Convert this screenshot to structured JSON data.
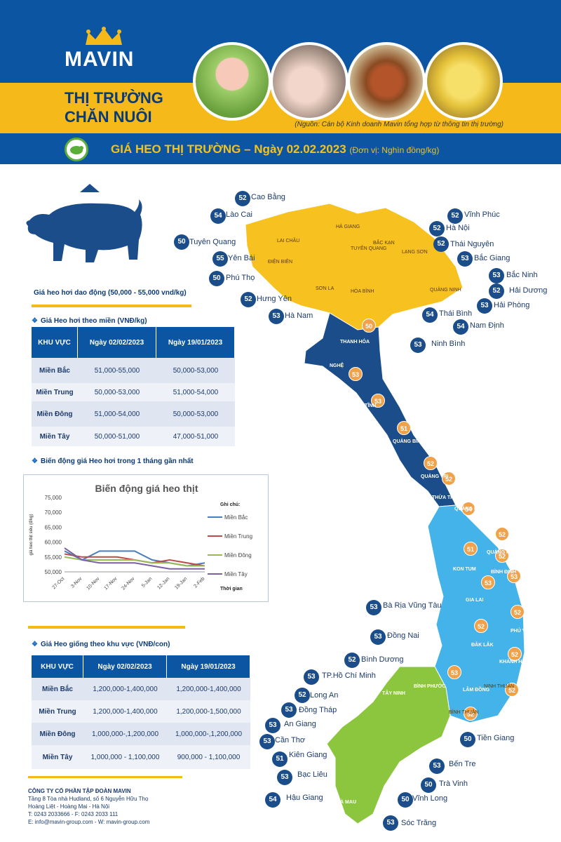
{
  "header": {
    "brand": "MAVIN",
    "title_line1": "THỊ TRƯỜNG",
    "title_line2": "CHĂN NUÔI",
    "source_note": "(Nguồn: Cán bộ Kinh doanh Mavin tổng hợp từ thông tin thị trường)"
  },
  "banner": {
    "title": "GIÁ HEO THỊ TRƯỜNG – Ngày 02.02.2023",
    "unit": "(Đơn vị: Nghìn đồng/kg)"
  },
  "fluctuation_note": "Giá heo hơi dao động (50,000 - 55,000 vnd/kg)",
  "table1": {
    "section_title": "Giá Heo hơi theo miền (VNĐ/kg)",
    "headers": [
      "KHU VỰC",
      "Ngày 02/02/2023",
      "Ngày 19/01/2023"
    ],
    "rows": [
      [
        "Miền Bắc",
        "51,000-55,000",
        "50,000-53,000"
      ],
      [
        "Miền Trung",
        "50,000-53,000",
        "51,000-54,000"
      ],
      [
        "Miền Đông",
        "51,000-54,000",
        "50,000-53,000"
      ],
      [
        "Miền Tây",
        "50,000-51,000",
        "47,000-51,000"
      ]
    ]
  },
  "chart_section_title": "Biến động giá Heo hơi trong 1 tháng gần nhất",
  "chart_data": {
    "type": "line",
    "title": "Biến động giá heo thịt",
    "ylabel": "giá heo thịt siêu (đ/kg)",
    "xlabel": "Thời gian",
    "legend_title": "Ghi chú:",
    "legend_position": "right",
    "ylim": [
      50000,
      75000
    ],
    "yticks": [
      "75,000",
      "70,000",
      "65,000",
      "60,000",
      "55,000",
      "50,000"
    ],
    "categories": [
      "27-Oct",
      "3-Nov",
      "10-Nov",
      "17-Nov",
      "24-Nov",
      "5-Jan",
      "12-Jan",
      "19-Jan",
      "2-Feb"
    ],
    "series": [
      {
        "name": "Miền Bắc",
        "color": "#4a7ebb",
        "values": [
          57000,
          54000,
          57000,
          57000,
          57000,
          54000,
          53000,
          52000,
          53000
        ]
      },
      {
        "name": "Miền Trung",
        "color": "#be4b48",
        "values": [
          56000,
          55000,
          55000,
          55000,
          54000,
          53000,
          54000,
          53000,
          52000
        ]
      },
      {
        "name": "Miền Đông",
        "color": "#98b954",
        "values": [
          55000,
          54000,
          54000,
          54000,
          54000,
          53000,
          53000,
          52000,
          52000
        ]
      },
      {
        "name": "Miền Tây",
        "color": "#7d60a0",
        "values": [
          58000,
          54000,
          53000,
          53000,
          53000,
          52000,
          51000,
          51000,
          51000
        ]
      }
    ]
  },
  "table2": {
    "section_title": "Giá Heo giống theo khu vực (VNĐ/con)",
    "headers": [
      "KHU VỰC",
      "Ngày 02/02/2023",
      "Ngày 19/01/2023"
    ],
    "rows": [
      [
        "Miền Bắc",
        "1,200,000-1,400,000",
        "1,200,000-1,400,000"
      ],
      [
        "Miền Trung",
        "1,200,000-1,400,000",
        "1,200,000-1,500,000"
      ],
      [
        "Miền Đông",
        "1,000,000-,1,200,000",
        "1,000,000-,1,200,000"
      ],
      [
        "Miền Tây",
        "1,000,000 - 1,100,000",
        "900,000 - 1,100,000"
      ]
    ]
  },
  "map_labels_left": [
    {
      "value": "52",
      "name": "Cao Bằng"
    },
    {
      "value": "54",
      "name": "Lào Cai"
    },
    {
      "value": "50",
      "name": "Tuyên Quang"
    },
    {
      "value": "55",
      "name": "Yên Bái"
    },
    {
      "value": "50",
      "name": "Phú Thọ"
    },
    {
      "value": "52",
      "name": "Hưng Yên"
    },
    {
      "value": "53",
      "name": "Hà Nam"
    }
  ],
  "map_labels_right": [
    {
      "value": "52",
      "name": "Vĩnh Phúc"
    },
    {
      "value": "52",
      "name": "Hà Nội"
    },
    {
      "value": "52",
      "name": "Thái Nguyên"
    },
    {
      "value": "53",
      "name": "Bắc Giang"
    },
    {
      "value": "53",
      "name": "Bắc Ninh"
    },
    {
      "value": "52",
      "name": "Hải Dương"
    },
    {
      "value": "53",
      "name": "Hải Phòng"
    },
    {
      "value": "54",
      "name": "Thái Bình"
    },
    {
      "value": "54",
      "name": "Nam Định"
    },
    {
      "value": "53",
      "name": "Ninh Bình"
    }
  ],
  "map_labels_south": [
    {
      "value": "53",
      "name": "Bà Rịa Vũng Tàu"
    },
    {
      "value": "53",
      "name": "Đồng Nai"
    },
    {
      "value": "52",
      "name": "Bình Dương"
    },
    {
      "value": "53",
      "name": "TP.Hồ Chí Minh"
    },
    {
      "value": "52",
      "name": "Long An"
    },
    {
      "value": "53",
      "name": "Đồng Tháp"
    },
    {
      "value": "53",
      "name": "An Giang"
    },
    {
      "value": "53",
      "name": "Cần Thơ"
    },
    {
      "value": "51",
      "name": "Kiên Giang"
    },
    {
      "value": "53",
      "name": "Bạc Liêu"
    },
    {
      "value": "54",
      "name": "Hậu Giang"
    },
    {
      "value": "50",
      "name": "Tiền Giang"
    },
    {
      "value": "53",
      "name": "Bến Tre"
    },
    {
      "value": "50",
      "name": "Trà Vinh"
    },
    {
      "value": "50",
      "name": "Vĩnh Long"
    },
    {
      "value": "53",
      "name": "Sóc Trăng"
    }
  ],
  "map_inline_badges": [
    "50",
    "53",
    "53",
    "51",
    "52",
    "52",
    "54",
    "52",
    "51",
    "52",
    "53",
    "53",
    "52",
    "52",
    "52",
    "53",
    "52",
    "52"
  ],
  "map_region_labels": [
    "THANH HÓA",
    "NGHỆ",
    "HÀ TĨNH",
    "QUẢNG BÌNH",
    "QUẢNG TRỊ",
    "THỪA THIÊN HUẾ",
    "QUẢNG NAM",
    "QUẢNG NGÃI",
    "KON TUM",
    "BÌNH ĐỊNH",
    "GIA LAI",
    "PHÚ YÊN",
    "ĐẮK LẮK",
    "KHÁNH HÒA",
    "LÂM ĐỒNG",
    "SƠN LA",
    "LAI CHÂU",
    "ĐIỆN BIÊN",
    "HÀ GIANG",
    "BẮC KẠN",
    "LẠNG SƠN",
    "QUẢNG NINH",
    "TUYÊN QUANG",
    "HÒA BÌNH",
    "NINH THUẬN",
    "BÌNH THUẬN",
    "TÂY NINH",
    "BÌNH PHƯỚC",
    "CÀ MAU"
  ],
  "footer": {
    "company": "CÔNG TY CỔ PHẦN TẬP ĐOÀN MAVIN",
    "address1": "Tầng 8 Tòa nhà Hudland, số 6 Nguyễn Hữu Thọ",
    "address2": "Hoàng Liệt - Hoàng Mai - Hà Nội",
    "phone": "T: 0243 2033666 - F: 0243 2033 111",
    "contact": "E: info@mavin-group.com - W: mavin-group.com"
  }
}
